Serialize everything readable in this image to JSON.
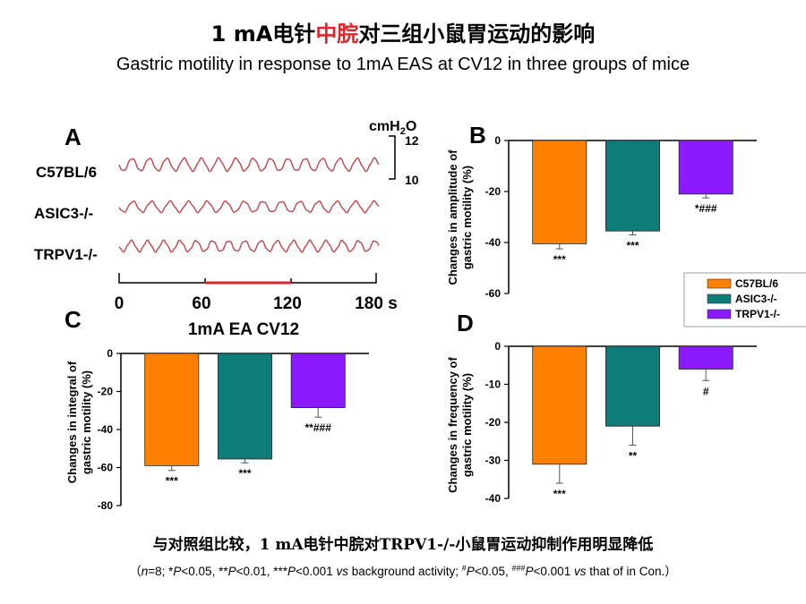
{
  "title_cn": {
    "pre": "1 mA电针",
    "highlight": "中脘",
    "post": "对三组小鼠胃运动的影响"
  },
  "title_en": "Gastric motility in response to 1mA EAS at CV12 in three groups of mice",
  "colors": {
    "c57": "#FF8000",
    "asic3": "#0E7C78",
    "trpv1": "#8B1AFF",
    "trace": "#C0464A",
    "stim": "#E0262A",
    "highlight": "#E0262A"
  },
  "panel_a": {
    "label": "A",
    "traces": [
      "C57BL/6",
      "ASIC3-/-",
      "TRPV1-/-"
    ],
    "scale": {
      "unit_pre": "cmH",
      "unit_sub": "2",
      "unit_post": "O",
      "top": "12",
      "bottom": "10"
    },
    "time_ticks": [
      "0",
      "60",
      "120",
      "180 s"
    ],
    "stim_label": "1mA EA CV12"
  },
  "legend": [
    "C57BL/6",
    "ASIC3-/-",
    "TRPV1-/-"
  ],
  "chart_data": [
    {
      "panel": "B",
      "type": "bar",
      "categories": [
        "C57BL/6",
        "ASIC3-/-",
        "TRPV1-/-"
      ],
      "values": [
        -40.5,
        -35.5,
        -21
      ],
      "errors": [
        2,
        1.5,
        1.5
      ],
      "ylabel": [
        "Changes in amplitude of",
        "gastric motility (%)"
      ],
      "ylim": [
        -60,
        0
      ],
      "yticks": [
        "0",
        "-20",
        "-40",
        "-60"
      ],
      "significance": [
        "***",
        "***",
        "*###"
      ]
    },
    {
      "panel": "C",
      "type": "bar",
      "categories": [
        "C57BL/6",
        "ASIC3-/-",
        "TRPV1-/-"
      ],
      "values": [
        -59,
        -55.5,
        -28.5
      ],
      "errors": [
        2.5,
        2,
        5
      ],
      "ylabel": [
        "Changes in integral of",
        "gastric motility (%)"
      ],
      "ylim": [
        -80,
        0
      ],
      "yticks": [
        "0",
        "-20",
        "-40",
        "-60",
        "-80"
      ],
      "significance": [
        "***",
        "***",
        "**###"
      ]
    },
    {
      "panel": "D",
      "type": "bar",
      "categories": [
        "C57BL/6",
        "ASIC3-/-",
        "TRPV1-/-"
      ],
      "values": [
        -31,
        -21,
        -6
      ],
      "errors": [
        5,
        5,
        3
      ],
      "ylabel": [
        "Changes in frequency of",
        "gastric motility (%)"
      ],
      "ylim": [
        -40,
        0
      ],
      "yticks": [
        "0",
        "-10",
        "-20",
        "-30",
        "-40"
      ],
      "significance": [
        "***",
        "**",
        "#"
      ]
    }
  ],
  "conclusion_cn": {
    "pre": "与对照组比较，",
    "bold": "1 mA",
    "mid": "电针中脘对",
    "bold2": "TRPV1-/-",
    "post": "小鼠胃运动抑制作用明显降低"
  },
  "footnote": {
    "open": "（",
    "n": "n",
    "n_eq": "=8; *",
    "p1": "P",
    "t1": "<0.05, **",
    "p2": "P",
    "t2": "<0.01, ***",
    "p3": "P",
    "t3": "<0.001 ",
    "vs1": "vs",
    "t4": " background activity; ",
    "sup1": "#",
    "p4": "P",
    "t5": "<0.05,  ",
    "sup2": "###",
    "p5": "P",
    "t6": "<0.001 ",
    "vs2": "vs",
    "t7": " that of in Con.）"
  }
}
